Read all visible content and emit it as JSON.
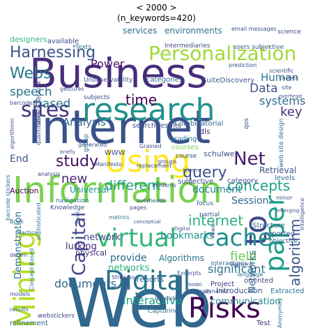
{
  "figure": {
    "title_line_1": "< 2000 >",
    "title_line_2": "(n_keywords=420)"
  },
  "words": [
    {
      "text": "Web",
      "color": "#31688e"
    },
    {
      "text": "Internet",
      "color": "#3b528b"
    },
    {
      "text": "Information",
      "color": "#7ad151"
    },
    {
      "text": "Business",
      "color": "#472d7b"
    },
    {
      "text": "research",
      "color": "#21918c"
    },
    {
      "text": "Digital",
      "color": "#2c728e"
    },
    {
      "text": "Risks",
      "color": "#440154"
    },
    {
      "text": "Using",
      "color": "#fde725"
    },
    {
      "text": "paper",
      "color": "#1f9e89"
    },
    {
      "text": "Mining",
      "color": "#b5de2b"
    },
    {
      "text": "virtual",
      "color": "#35b779"
    },
    {
      "text": "Personalization",
      "color": "#a0da39"
    },
    {
      "text": "to",
      "color": "#3e4989"
    },
    {
      "text": "cache",
      "color": "#218f8d"
    },
    {
      "text": "sites",
      "color": "#46327e"
    },
    {
      "text": "Capital",
      "color": "#3e4989"
    },
    {
      "text": "Harnessing",
      "color": "#3a548c"
    },
    {
      "text": "Webs",
      "color": "#2a788e"
    },
    {
      "text": "study",
      "color": "#471063"
    },
    {
      "text": "Net",
      "color": "#481b6d"
    },
    {
      "text": "query",
      "color": "#3b528b"
    },
    {
      "text": "concepts",
      "color": "#1fa187"
    },
    {
      "text": "internet",
      "color": "#2db27d"
    },
    {
      "text": "algorithm",
      "color": "#3b528b"
    },
    {
      "text": "documents",
      "color": "#31688e"
    },
    {
      "text": "interactive",
      "color": "#1f9e89"
    },
    {
      "text": "communication",
      "color": "#26828e"
    },
    {
      "text": "different",
      "color": "#1fa187"
    },
    {
      "text": "significant",
      "color": "#2c728e"
    },
    {
      "text": "Power",
      "color": "#481467"
    },
    {
      "text": "time",
      "color": "#440154"
    },
    {
      "text": "speech",
      "color": "#2c728e"
    },
    {
      "text": "based",
      "color": "#2c728e"
    },
    {
      "text": "Data",
      "color": "#3b528b"
    },
    {
      "text": "Human",
      "color": "#2c728e"
    },
    {
      "text": "systems",
      "color": "#31688e"
    },
    {
      "text": "key",
      "color": "#46327e"
    },
    {
      "text": "document",
      "color": "#26828e"
    },
    {
      "text": "Analysis",
      "color": "#31688e"
    },
    {
      "text": "new",
      "color": "#482878"
    },
    {
      "text": "End",
      "color": "#3b528b"
    },
    {
      "text": "Session",
      "color": "#31688e"
    },
    {
      "text": "provide",
      "color": "#31688e"
    },
    {
      "text": "network",
      "color": "#3e4989"
    },
    {
      "text": "networks",
      "color": "#2db27d"
    },
    {
      "text": "field",
      "color": "#6ece58"
    },
    {
      "text": "Algorithms",
      "color": "#2c728e"
    },
    {
      "text": "bookmarks",
      "color": "#21918c"
    },
    {
      "text": "Networks",
      "color": "#31688e"
    },
    {
      "text": "Introduction",
      "color": "#3b528b"
    },
    {
      "text": "Demonstration",
      "color": "#2c728e"
    },
    {
      "text": "lurking",
      "color": "#482878"
    },
    {
      "text": "reports",
      "color": "#31688e"
    },
    {
      "text": "Retrieval",
      "color": "#3b528b"
    },
    {
      "text": "services",
      "color": "#31688e"
    },
    {
      "text": "environments",
      "color": "#2c728e"
    },
    {
      "text": "designers",
      "color": "#35b779"
    },
    {
      "text": "available",
      "color": "#3e4989"
    },
    {
      "text": "Structure",
      "color": "#31688e"
    },
    {
      "text": "reported",
      "color": "#3b528b"
    },
    {
      "text": "objective",
      "color": "#31688e"
    },
    {
      "text": "Auction",
      "color": "#440154"
    },
    {
      "text": "Universal",
      "color": "#21918c"
    },
    {
      "text": "category",
      "color": "#3e4989"
    },
    {
      "text": "subjective",
      "color": "#3e4989"
    },
    {
      "text": "dls",
      "color": "#46327e"
    },
    {
      "text": "courses",
      "color": "#7ad151"
    },
    {
      "text": "schulweb",
      "color": "#3b528b"
    },
    {
      "text": "levels",
      "color": "#2c728e"
    },
    {
      "text": "Test",
      "color": "#46327e"
    },
    {
      "text": "Extracted",
      "color": "#2c728e"
    },
    {
      "text": "oriented",
      "color": "#3e4989"
    },
    {
      "text": "Project",
      "color": "#46327e"
    },
    {
      "text": "Capturing",
      "color": "#31688e"
    },
    {
      "text": "refinement",
      "color": "#31688e"
    },
    {
      "text": "webstickers",
      "color": "#3e4989"
    },
    {
      "text": "Heuristic",
      "color": "#3b528b"
    },
    {
      "text": "physical",
      "color": "#482878"
    },
    {
      "text": "grading",
      "color": "#2c728e"
    },
    {
      "text": "search results",
      "color": "#3b528b"
    },
    {
      "text": "categories",
      "color": "#31688e"
    },
    {
      "text": "SuiteDiscovery",
      "color": "#3b528b"
    },
    {
      "text": "Unobservability",
      "color": "#3b528b"
    },
    {
      "text": "subjects",
      "color": "#3b528b"
    },
    {
      "text": "Combinatorial",
      "color": "#31688e"
    },
    {
      "text": "qos",
      "color": "#3b528b"
    },
    {
      "text": "web site design",
      "color": "#2c728e"
    },
    {
      "text": "Knowledge",
      "color": "#3b528b"
    },
    {
      "text": "Intermediaries",
      "color": "#3e4989"
    },
    {
      "text": "users subjective",
      "color": "#3b528b"
    },
    {
      "text": "science",
      "color": "#3e4989"
    },
    {
      "text": "Texts",
      "color": "#2c728e"
    },
    {
      "text": "focus",
      "color": "#31688e"
    },
    {
      "text": "partial",
      "color": "#3b528b"
    },
    {
      "text": "Book",
      "color": "#2c728e"
    },
    {
      "text": "practice",
      "color": "#2c728e"
    },
    {
      "text": "sophisticated",
      "color": "#2c728e"
    },
    {
      "text": "Concept-Based",
      "color": "#2c728e"
    },
    {
      "text": "pages",
      "color": "#3e4989"
    },
    {
      "text": "minor",
      "color": "#3b528b"
    },
    {
      "text": "scheme",
      "color": "#3b528b"
    },
    {
      "text": "gestures",
      "color": "#3b528b"
    },
    {
      "text": "metrics",
      "color": "#2c728e"
    },
    {
      "text": "Cluetrain",
      "color": "#3b528b"
    },
    {
      "text": "Excerpts",
      "color": "#3b528b"
    },
    {
      "text": "latency network",
      "color": "#3b528b"
    },
    {
      "text": "analysis",
      "color": "#3e4989"
    },
    {
      "text": "denim",
      "color": "#3b528b"
    },
    {
      "text": "barcode stickers",
      "color": "#2c728e"
    },
    {
      "text": "barcodes",
      "color": "#3b528b"
    },
    {
      "text": "quantitative",
      "color": "#3e4989"
    },
    {
      "text": "algorithmic",
      "color": "#3b528b"
    },
    {
      "text": "results",
      "color": "#31688e"
    },
    {
      "text": "models",
      "color": "#3b528b"
    },
    {
      "text": "navigation",
      "color": "#2c728e"
    },
    {
      "text": "interactions",
      "color": "#2c728e"
    },
    {
      "text": "Anonymity",
      "color": "#2c728e"
    },
    {
      "text": "overheads",
      "color": "#3b528b"
    },
    {
      "text": "Streams",
      "color": "#3e4989"
    },
    {
      "text": "replacement",
      "color": "#3b528b"
    },
    {
      "text": "generated",
      "color": "#3b528b"
    },
    {
      "text": "caches",
      "color": "#3b528b"
    },
    {
      "text": "group",
      "color": "#2c728e"
    },
    {
      "text": "WWW",
      "color": "#3b528b"
    },
    {
      "text": "language",
      "color": "#2c728e"
    },
    {
      "text": "email messages",
      "color": "#3b528b"
    },
    {
      "text": "prediction",
      "color": "#3b528b"
    },
    {
      "text": "site",
      "color": "#3b528b"
    },
    {
      "text": "course",
      "color": "#3b528b"
    },
    {
      "text": "Patterns",
      "color": "#3b528b"
    },
    {
      "text": "modems",
      "color": "#3b528b"
    },
    {
      "text": "groups",
      "color": "#3e4989"
    },
    {
      "text": "fewer",
      "color": "#3b528b"
    },
    {
      "text": "dynamic",
      "color": "#3b528b"
    },
    {
      "text": "scientific",
      "color": "#3b528b"
    },
    {
      "text": "overhead",
      "color": "#3b528b"
    },
    {
      "text": "Grained",
      "color": "#3b528b"
    },
    {
      "text": "Manifesto",
      "color": "#3b528b"
    },
    {
      "text": "level",
      "color": "#3b528b"
    },
    {
      "text": "model",
      "color": "#3b528b"
    },
    {
      "text": "Intelligence",
      "color": "#3b528b"
    },
    {
      "text": "conceptual",
      "color": "#3b528b"
    },
    {
      "text": "emerging",
      "color": "#3b528b"
    },
    {
      "text": "briefly",
      "color": "#3b528b"
    },
    {
      "text": "Digital",
      "color": "#3b528b"
    }
  ]
}
